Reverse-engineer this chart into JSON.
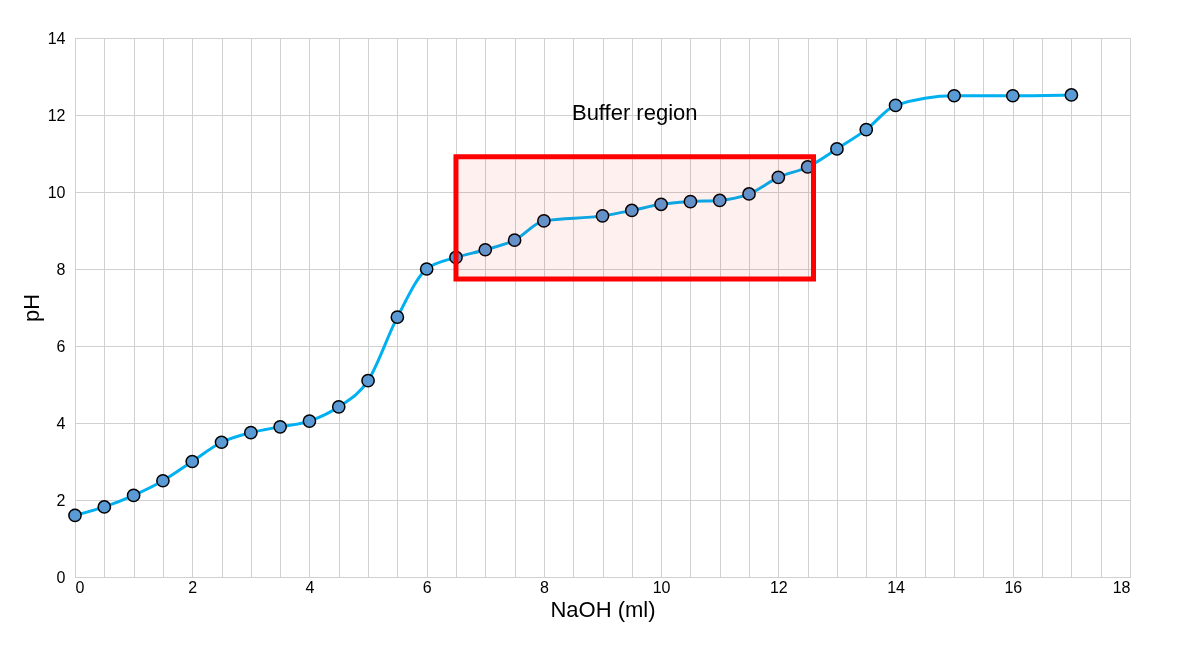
{
  "chart_data": {
    "type": "line",
    "xlabel": "NaOH (ml)",
    "ylabel": "pH",
    "x": [
      0,
      0.5,
      1,
      1.5,
      2,
      2.5,
      3,
      3.5,
      4,
      4.5,
      5,
      5.5,
      6,
      6.5,
      7,
      7.5,
      8,
      9,
      9.5,
      10,
      10.5,
      11,
      11.5,
      12,
      12.5,
      13,
      13.5,
      14,
      15,
      16,
      17
    ],
    "series": [
      {
        "color": "#00b0f0",
        "values": [
          1.6,
          1.82,
          2.12,
          2.5,
          3.0,
          3.5,
          3.75,
          3.9,
          4.05,
          4.42,
          5.1,
          6.75,
          8.0,
          8.3,
          8.5,
          8.75,
          9.25,
          9.38,
          9.52,
          9.68,
          9.75,
          9.78,
          9.95,
          10.38,
          10.65,
          11.12,
          11.62,
          12.25,
          12.5,
          12.5,
          12.52
        ]
      }
    ],
    "marker": "circle",
    "line_style": "solid",
    "grid": true,
    "xlim": [
      0,
      18
    ],
    "xticks": [
      0,
      {
        "value": 0.5,
        "label": null
      },
      {
        "value": 1,
        "label": null
      },
      {
        "value": 1.5,
        "label": null
      },
      2,
      {
        "value": 2.5,
        "label": null
      },
      {
        "value": 3,
        "label": null
      },
      {
        "value": 3.5,
        "label": null
      },
      4,
      {
        "value": 4.5,
        "label": null
      },
      {
        "value": 5,
        "label": null
      },
      {
        "value": 5.5,
        "label": null
      },
      6,
      {
        "value": 6.5,
        "label": null
      },
      {
        "value": 7,
        "label": null
      },
      {
        "value": 7.5,
        "label": null
      },
      8,
      {
        "value": 8.5,
        "label": null
      },
      {
        "value": 9,
        "label": null
      },
      {
        "value": 9.5,
        "label": null
      },
      10,
      {
        "value": 10.5,
        "label": null
      },
      {
        "value": 11,
        "label": null
      },
      {
        "value": 11.5,
        "label": null
      },
      12,
      {
        "value": 12.5,
        "label": null
      },
      {
        "value": 13,
        "label": null
      },
      {
        "value": 13.5,
        "label": null
      },
      14,
      {
        "value": 14.5,
        "label": null
      },
      {
        "value": 15,
        "label": null
      },
      {
        "value": 15.5,
        "label": null
      },
      16,
      {
        "value": 16.5,
        "label": null
      },
      {
        "value": 17,
        "label": null
      },
      {
        "value": 17.5,
        "label": null
      },
      18
    ],
    "ylim": [
      0,
      14
    ],
    "yticks": [
      0,
      2,
      4,
      6,
      8,
      10,
      12,
      14
    ],
    "bands": [
      {
        "axis": "x",
        "from": 6.5,
        "to": 12.6,
        "label": "Buffer region",
        "color": "#ff0000"
      }
    ]
  }
}
